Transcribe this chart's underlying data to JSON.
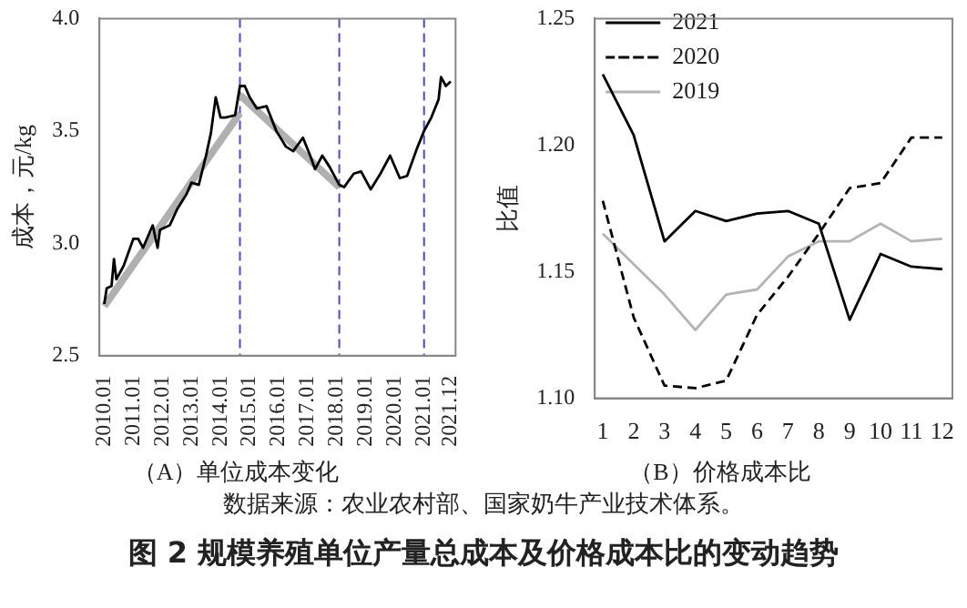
{
  "chart_data": [
    {
      "type": "line",
      "title": "（A）单位成本变化",
      "ylabel": "成本，元/kg",
      "x": [
        "2010-01",
        "2010-02",
        "2010-04",
        "2010-05",
        "2010-06",
        "2010-09",
        "2011-01",
        "2011-03",
        "2011-05",
        "2011-09",
        "2011-11",
        "2011-12",
        "2012-04",
        "2012-07",
        "2012-11",
        "2013-01",
        "2013-04",
        "2013-07",
        "2013-09",
        "2013-11",
        "2014-01",
        "2014-03",
        "2014-07",
        "2014-09",
        "2014-11",
        "2015-01",
        "2015-04",
        "2015-08",
        "2015-12",
        "2016-04",
        "2016-07",
        "2016-11",
        "2017-02",
        "2017-04",
        "2017-07",
        "2017-10",
        "2018-02",
        "2018-04",
        "2018-08",
        "2018-11",
        "2019-03",
        "2019-07",
        "2019-11",
        "2020-03",
        "2020-06",
        "2020-10",
        "2021-01",
        "2021-04",
        "2021-07",
        "2021-08",
        "2021-10",
        "2021-12"
      ],
      "series": [
        {
          "color": "#000000",
          "values": [
            2.73,
            2.8,
            2.81,
            2.93,
            2.84,
            2.9,
            3.02,
            3.02,
            2.98,
            3.08,
            2.98,
            3.06,
            3.08,
            3.15,
            3.22,
            3.27,
            3.26,
            3.39,
            3.49,
            3.65,
            3.56,
            3.56,
            3.57,
            3.7,
            3.7,
            3.65,
            3.6,
            3.61,
            3.5,
            3.43,
            3.41,
            3.47,
            3.39,
            3.33,
            3.39,
            3.34,
            3.26,
            3.25,
            3.31,
            3.32,
            3.24,
            3.31,
            3.39,
            3.29,
            3.3,
            3.42,
            3.5,
            3.56,
            3.64,
            3.74,
            3.7,
            3.72
          ]
        },
        {
          "type": "line",
          "color": "#b0b0b0",
          "x": [
            "2010-01",
            "2014-09"
          ],
          "values": [
            2.72,
            3.58
          ]
        },
        {
          "type": "line",
          "color": "#b0b0b0",
          "x": [
            "2014-09",
            "2018-02"
          ],
          "values": [
            3.66,
            3.25
          ]
        }
      ],
      "xlim": [
        "2009-11",
        "2022-02"
      ],
      "xticks": [
        {
          "value": "2010-01",
          "label": "2010.01"
        },
        {
          "value": "2011-01",
          "label": "2011.01"
        },
        {
          "value": "2012-01",
          "label": "2012.01"
        },
        {
          "value": "2013-01",
          "label": "2013.01"
        },
        {
          "value": "2014-01",
          "label": "2014.01"
        },
        {
          "value": "2015-01",
          "label": "2015.01"
        },
        {
          "value": "2016-01",
          "label": "2016.01"
        },
        {
          "value": "2017-01",
          "label": "2017.01"
        },
        {
          "value": "2018-01",
          "label": "2018.01"
        },
        {
          "value": "2019-01",
          "label": "2019.01"
        },
        {
          "value": "2020-01",
          "label": "2020.01"
        },
        {
          "value": "2021-01",
          "label": "2021.01"
        },
        {
          "value": "2021-12",
          "label": "2021.12"
        }
      ],
      "ylim": [
        2.5,
        4.0
      ],
      "yticks": [
        2.5,
        {
          "value": 3,
          "label": "3.0"
        },
        3.5,
        {
          "value": 4,
          "label": "4.0"
        }
      ],
      "ref_lines": [
        {
          "axis": "x",
          "value": "2014-09",
          "color": "#4a4ad0",
          "line_style": "dashed"
        },
        {
          "axis": "x",
          "value": "2018-02",
          "color": "#4a4ad0",
          "line_style": "dashed"
        },
        {
          "axis": "x",
          "value": "2021-01",
          "color": "#4a4ad0",
          "line_style": "dashed"
        }
      ],
      "annotations": [
        "数据来源：农业农村部、国家奶牛产业技术体系。",
        "图 2  规模养殖单位产量总成本及价格成本比的变动趋势"
      ],
      "grid": false,
      "legend": false,
      "marker": "none"
    },
    {
      "type": "line",
      "title": "（B）价格成本比",
      "ylabel": "比值",
      "x": [
        1,
        2,
        3,
        4,
        5,
        6,
        7,
        8,
        9,
        10,
        11,
        12
      ],
      "xlim": [
        0.74,
        12.33
      ],
      "xticks": [
        1,
        2,
        3,
        4,
        5,
        6,
        7,
        8,
        9,
        10,
        11,
        12
      ],
      "series": [
        {
          "name": "2021",
          "color": "#000000",
          "line_style": "solid",
          "values": [
            1.228,
            1.204,
            1.162,
            1.174,
            1.17,
            1.173,
            1.174,
            1.169,
            1.131,
            1.157,
            1.152,
            1.151
          ]
        },
        {
          "name": "2020",
          "color": "#000000",
          "line_style": "dashed",
          "values": [
            1.178,
            1.132,
            1.105,
            1.104,
            1.107,
            1.133,
            1.148,
            1.165,
            1.183,
            1.185,
            1.203,
            1.203
          ]
        },
        {
          "name": "2019",
          "color": "#b4b4b4",
          "line_style": "solid",
          "values": [
            1.165,
            1.153,
            1.141,
            1.127,
            1.141,
            1.143,
            1.156,
            1.162,
            1.162,
            1.169,
            1.162,
            1.163
          ]
        }
      ],
      "ylim": [
        1.1,
        1.25
      ],
      "yticks": [
        {
          "value": 1.1,
          "label": "1.10"
        },
        {
          "value": 1.15,
          "label": "1.15"
        },
        {
          "value": 1.2,
          "label": "1.20"
        },
        {
          "value": 1.25,
          "label": "1.25"
        }
      ],
      "grid": false,
      "legend": "top left",
      "marker": "none"
    }
  ]
}
